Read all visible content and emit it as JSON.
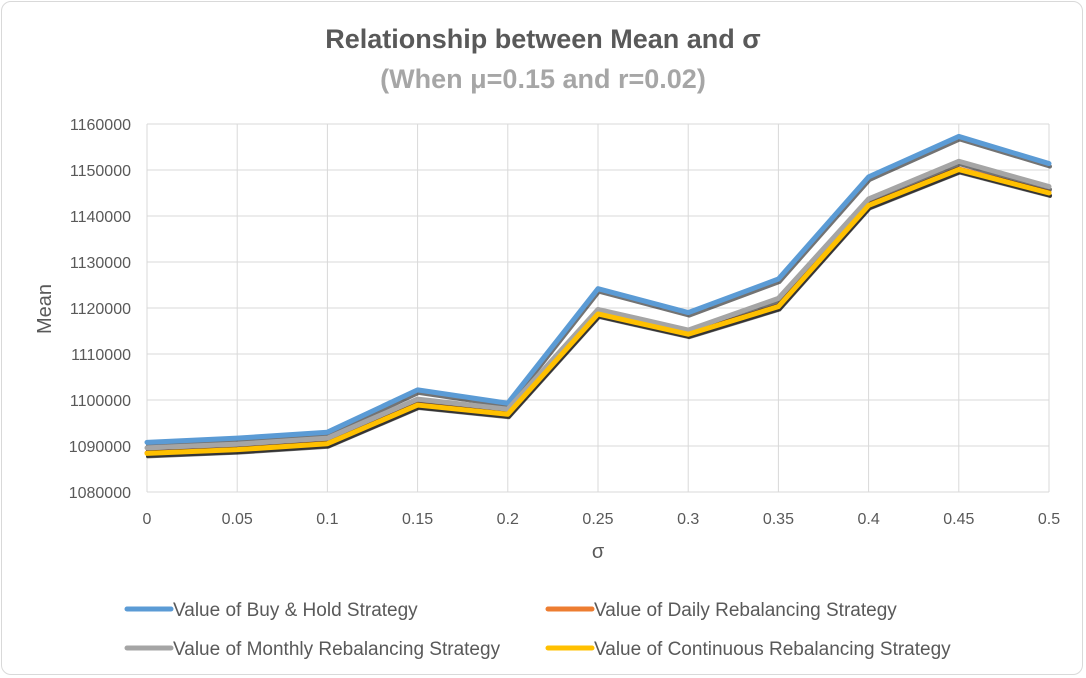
{
  "chart_data": {
    "type": "line",
    "title": "Relationship between Mean and σ",
    "subtitle": "(When μ=0.15 and r=0.02)",
    "xlabel": "σ",
    "ylabel": "Mean",
    "categories": [
      "0",
      "0.05",
      "0.1",
      "0.15",
      "0.2",
      "0.25",
      "0.3",
      "0.35",
      "0.4",
      "0.45",
      "0.5"
    ],
    "ylim": [
      1080000,
      1160000
    ],
    "yticks": [
      "1080000",
      "1090000",
      "1100000",
      "1110000",
      "1120000",
      "1130000",
      "1140000",
      "1150000",
      "1160000"
    ],
    "grid": true,
    "legend_position": "bottom",
    "series": [
      {
        "name": "Value of Buy & Hold Strategy",
        "color": "#5b9bd5",
        "values": [
          1090800,
          1091700,
          1093000,
          1102200,
          1099300,
          1124200,
          1119000,
          1126300,
          1148500,
          1157300,
          1151400
        ]
      },
      {
        "name": "Value of Daily Rebalancing Strategy",
        "color": "#ed7d31",
        "values": [
          1088500,
          1089300,
          1090600,
          1099000,
          1097000,
          1118800,
          1114400,
          1120400,
          1142400,
          1150200,
          1145100
        ]
      },
      {
        "name": "Value of Monthly Rebalancing Strategy",
        "color": "#a5a5a5",
        "values": [
          1089600,
          1090400,
          1091700,
          1100200,
          1098000,
          1119700,
          1115200,
          1122100,
          1143700,
          1151900,
          1146400
        ]
      },
      {
        "name": "Value of Continuous Rebalancing Strategy",
        "color": "#ffc000",
        "values": [
          1088400,
          1089200,
          1090500,
          1098900,
          1096900,
          1118700,
          1114300,
          1120300,
          1142300,
          1150100,
          1145000
        ]
      }
    ]
  }
}
